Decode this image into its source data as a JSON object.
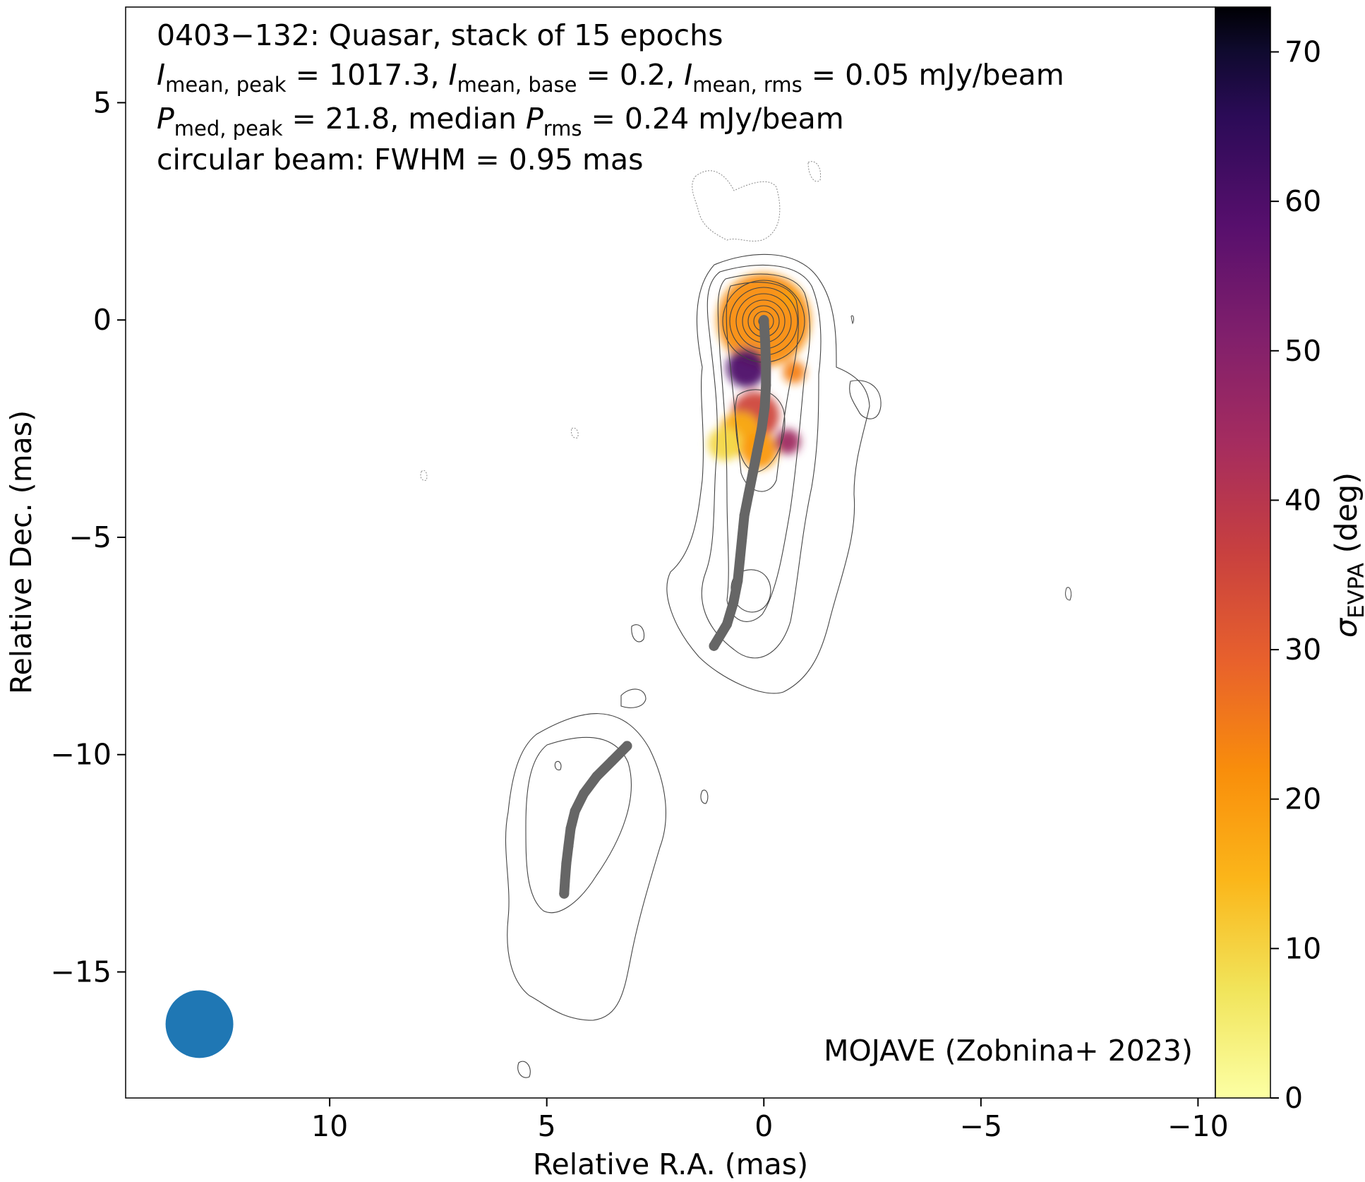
{
  "chart_data": {
    "type": "contour",
    "title_lines": {
      "line1": "0403−132: Quasar, stack of 15 epochs",
      "line2": {
        "i_mean_peak_label": "I",
        "i_mean_peak_sub": "mean, peak",
        "i_mean_peak_value": " = 1017.3, ",
        "i_mean_base_label": "I",
        "i_mean_base_sub": "mean, base",
        "i_mean_base_value": " = 0.2, ",
        "i_mean_rms_label": "I",
        "i_mean_rms_sub": "mean, rms",
        "i_mean_rms_value": " = 0.05 mJy/beam"
      },
      "line3": {
        "p_label": "P",
        "p_sub": "med, peak",
        "p_value": " = 21.8, median ",
        "prms_label": "P",
        "prms_sub": "rms",
        "prms_value": " = 0.24 mJy/beam"
      },
      "line4": "circular beam: FWHM = 0.95 mas"
    },
    "xlabel": "Relative R.A. (mas)",
    "ylabel": "Relative Dec. (mas)",
    "xlim": [
      14.7,
      -10.4
    ],
    "ylim": [
      -17.9,
      7.2
    ],
    "xticks": [
      {
        "v": 10,
        "label": "10"
      },
      {
        "v": 5,
        "label": "5"
      },
      {
        "v": 0,
        "label": "0"
      },
      {
        "v": -5,
        "label": "−5"
      },
      {
        "v": -10,
        "label": "−10"
      }
    ],
    "yticks": [
      {
        "v": 5,
        "label": "5"
      },
      {
        "v": 0,
        "label": "0"
      },
      {
        "v": -5,
        "label": "−5"
      },
      {
        "v": -10,
        "label": "−10"
      },
      {
        "v": -15,
        "label": "−15"
      }
    ],
    "colorbar": {
      "label_sigma": "σ",
      "label_sub": "EVPA",
      "label_unit": " (deg)",
      "range": [
        0,
        73
      ],
      "colormap": "inferno_r",
      "ticks": [
        {
          "v": 0,
          "label": "0"
        },
        {
          "v": 10,
          "label": "10"
        },
        {
          "v": 20,
          "label": "20"
        },
        {
          "v": 30,
          "label": "30"
        },
        {
          "v": 40,
          "label": "40"
        },
        {
          "v": 50,
          "label": "50"
        },
        {
          "v": 60,
          "label": "60"
        },
        {
          "v": 70,
          "label": "70"
        }
      ]
    },
    "annotation": "MOJAVE (Zobnina+ 2023)",
    "beam": {
      "x": 13.0,
      "y": -16.2,
      "fwhm": 0.95,
      "color": "#1f77b4"
    },
    "ridge_lines": [
      {
        "color": "#666666",
        "points": [
          [
            0.0,
            0.0
          ],
          [
            -0.03,
            -0.5
          ],
          [
            -0.05,
            -1.0
          ],
          [
            -0.05,
            -1.5
          ],
          [
            -0.02,
            -2.0
          ],
          [
            0.05,
            -2.5
          ],
          [
            0.15,
            -3.0
          ],
          [
            0.25,
            -3.5
          ],
          [
            0.35,
            -4.0
          ],
          [
            0.45,
            -4.5
          ],
          [
            0.5,
            -5.0
          ],
          [
            0.55,
            -5.5
          ],
          [
            0.6,
            -6.0
          ],
          [
            0.7,
            -6.5
          ],
          [
            0.85,
            -7.0
          ],
          [
            1.15,
            -7.5
          ]
        ]
      },
      {
        "color": "#666666",
        "points": [
          [
            3.15,
            -9.8
          ],
          [
            3.5,
            -10.15
          ],
          [
            3.85,
            -10.5
          ],
          [
            4.15,
            -10.9
          ],
          [
            4.35,
            -11.3
          ],
          [
            4.45,
            -11.7
          ],
          [
            4.5,
            -12.1
          ],
          [
            4.55,
            -12.5
          ],
          [
            4.58,
            -12.9
          ],
          [
            4.6,
            -13.2
          ]
        ]
      }
    ],
    "polarization_regions": [
      {
        "x": 0.0,
        "y": 0.0,
        "sigma": 22
      },
      {
        "x": 0.4,
        "y": -1.1,
        "sigma": 60
      },
      {
        "x": 0.2,
        "y": -2.2,
        "sigma": 35
      },
      {
        "x": 0.55,
        "y": -2.6,
        "sigma": 16
      },
      {
        "x": 0.9,
        "y": -2.85,
        "sigma": 9
      },
      {
        "x": 0.1,
        "y": -3.0,
        "sigma": 20
      },
      {
        "x": -0.55,
        "y": -2.8,
        "sigma": 45
      },
      {
        "x": -0.7,
        "y": -1.2,
        "sigma": 24
      },
      {
        "x": -0.6,
        "y": 0.5,
        "sigma": 19
      }
    ]
  }
}
